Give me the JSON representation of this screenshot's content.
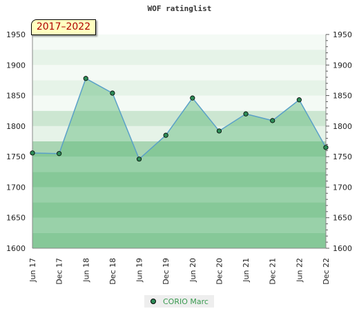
{
  "chart_data": {
    "type": "area",
    "title": "WOF ratinglist",
    "period_label": "2017–2022",
    "x": [
      "Jun 17",
      "Dec 17",
      "Jun 18",
      "Dec 18",
      "Jun 19",
      "Dec 19",
      "Jun 20",
      "Dec 20",
      "Jun 21",
      "Dec 21",
      "Jun 22",
      "Dec 22"
    ],
    "series": [
      {
        "name": "CORIO Marc",
        "values": [
          1756,
          1755,
          1878,
          1854,
          1746,
          1785,
          1846,
          1792,
          1820,
          1809,
          1843,
          1765
        ]
      }
    ],
    "ylim": [
      1600,
      1950
    ],
    "yticks": [
      1600,
      1650,
      1700,
      1750,
      1800,
      1850,
      1900,
      1950
    ],
    "y_axis_both_sides": true,
    "legend_position": "bottom-center",
    "colors": {
      "line": "#5aa0c8",
      "fill": "#5cb878",
      "marker": "#2e8b57",
      "band_light": "#e6f3e8",
      "band_mid": "#cce6d1",
      "band_dark": "#a9d5b3"
    }
  }
}
